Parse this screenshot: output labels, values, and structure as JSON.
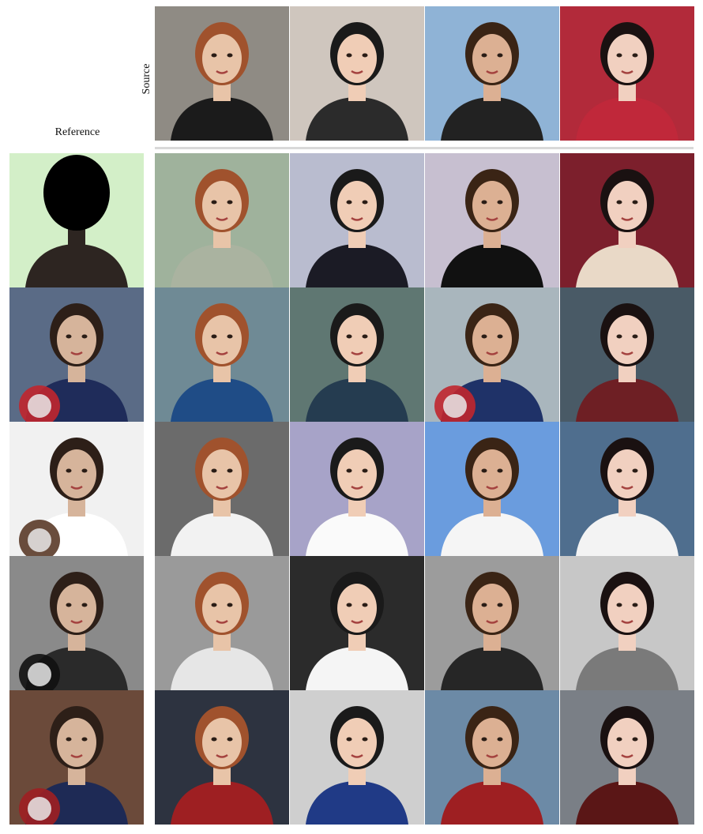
{
  "figure": {
    "source_label": "Source",
    "reference_label": "Reference"
  },
  "sources": [
    {
      "name": "source-1",
      "bg": "#8f8b84",
      "skin": "#e8c4a8",
      "hair": "#a0522d",
      "outfit": "#1b1b1b"
    },
    {
      "name": "source-2",
      "bg": "#cfc6be",
      "skin": "#f0cdb6",
      "hair": "#1a1a1a",
      "outfit": "#2b2b2b"
    },
    {
      "name": "source-3",
      "bg": "#8fb3d6",
      "skin": "#dcb093",
      "hair": "#3a2415",
      "outfit": "#222222"
    },
    {
      "name": "source-4",
      "bg": "#b22a3a",
      "skin": "#f1d0c0",
      "hair": "#1a1111",
      "outfit": "#c0283a"
    }
  ],
  "references": [
    {
      "name": "reference-1",
      "bg": "#d3efc8",
      "outfit": "#2d2521",
      "masked": true
    },
    {
      "name": "reference-2",
      "bg": "#5a6b86",
      "outfit": "#1f2c5a",
      "accent": "#c0262d"
    },
    {
      "name": "reference-3",
      "bg": "#f1f1f1",
      "outfit": "#ffffff",
      "accent": "#5a3a28"
    },
    {
      "name": "reference-4",
      "bg": "#8a8a8a",
      "outfit": "#2a2a2a",
      "accent": "#111111"
    },
    {
      "name": "reference-5",
      "bg": "#6b4a3a",
      "outfit": "#1e2a55",
      "accent": "#9e1f22"
    }
  ],
  "results": [
    {
      "bg": "#9fb29c",
      "outfit": "#aab3a0"
    },
    {
      "bg": "#b9bccf",
      "outfit": "#1b1b25"
    },
    {
      "bg": "#c7bfd0",
      "outfit": "#111111"
    },
    {
      "bg": "#7c1f2c",
      "outfit": "#e9d9c7"
    },
    {
      "bg": "#6f8a95",
      "outfit": "#1f4c86"
    },
    {
      "bg": "#5f7772",
      "outfit": "#253c50"
    },
    {
      "bg": "#a9b6bd",
      "outfit": "#1f3268"
    },
    {
      "bg": "#495a66",
      "outfit": "#6e1f24"
    },
    {
      "bg": "#6b6b6b",
      "outfit": "#f2f2f2"
    },
    {
      "bg": "#a7a3c8",
      "outfit": "#fafafa"
    },
    {
      "bg": "#6a9cde",
      "outfit": "#f5f5f5"
    },
    {
      "bg": "#4f6e8e",
      "outfit": "#f3f3f3"
    },
    {
      "bg": "#9a9a9a",
      "outfit": "#e6e6e6"
    },
    {
      "bg": "#2b2b2b",
      "outfit": "#f5f5f5"
    },
    {
      "bg": "#9c9c9c",
      "outfit": "#262626"
    },
    {
      "bg": "#c7c7c7",
      "outfit": "#7a7a7a"
    },
    {
      "bg": "#2d3340",
      "outfit": "#9e1f22"
    },
    {
      "bg": "#cfcfcf",
      "outfit": "#203a86"
    },
    {
      "bg": "#6c8aa6",
      "outfit": "#9e1f22"
    },
    {
      "bg": "#7a7f86",
      "outfit": "#5a1616"
    }
  ]
}
